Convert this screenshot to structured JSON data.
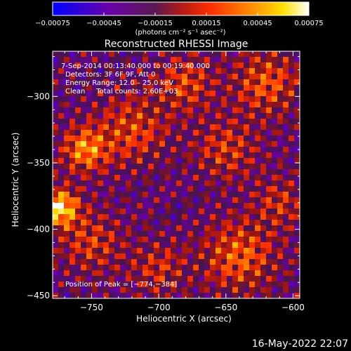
{
  "chart_data": {
    "type": "heatmap",
    "title": "Reconstructed RHESSI Image",
    "xlabel": "Heliocentric X (arcsec)",
    "ylabel": "Heliocentric Y (arcsec)",
    "xlim": [
      -779,
      -595
    ],
    "ylim": [
      -452,
      -266
    ],
    "x_ticks": [
      -750,
      -700,
      -650,
      -600
    ],
    "y_ticks": [
      -300,
      -350,
      -400,
      -450
    ],
    "x_tick_labels": [
      "−750",
      "−700",
      "−650",
      "−600"
    ],
    "y_tick_labels": [
      "−300",
      "−350",
      "−400",
      "−450"
    ],
    "colorbar": {
      "min": -0.00075,
      "max": 0.00075,
      "ticks": [
        -0.00075,
        -0.00045,
        -0.00015,
        0.00015,
        0.00045,
        0.00075
      ],
      "tick_labels": [
        "−0.00075",
        "−0.00045",
        "−0.00015",
        "0.00015",
        "0.00045",
        "0.00075"
      ],
      "units_label": "(photons cm⁻² s⁻¹ asec⁻²)"
    },
    "annotations": {
      "time_range": "7‐Sep‐2014 00:13:40.000 to 00:19:40.000",
      "detectors": "Detectors: 3F 6F 9F, Att 0",
      "energy_range": "Energy Range: 12.0 – 25.0 keV",
      "clean_counts": "Clean     Total counts: 2.60E+03",
      "peak": "Position of Peak = [−774,−384]"
    },
    "peak_position": [
      -774,
      -384
    ],
    "grid": false
  },
  "footer": {
    "timestamp": "16‐May‐2022 22:07"
  },
  "colors": {
    "background": "#000000",
    "text": "#ffffff",
    "colormap": [
      "#0000ff",
      "#6a00a8",
      "#5a2a7a",
      "#b01a1a",
      "#ff3000",
      "#ff9000",
      "#ffe000",
      "#ffffff"
    ]
  }
}
